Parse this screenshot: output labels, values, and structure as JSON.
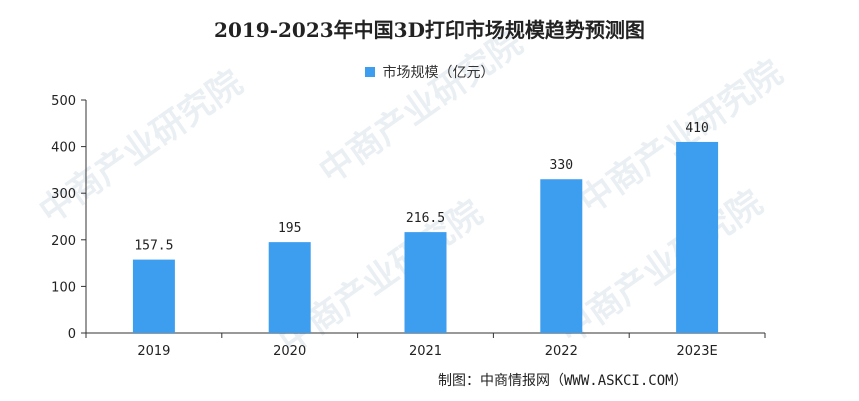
{
  "chart_data": {
    "type": "bar",
    "title": "2019-2023年中国3D打印市场规模趋势预测图",
    "categories": [
      "2019",
      "2020",
      "2021",
      "2022",
      "2023E"
    ],
    "series": [
      {
        "name": "市场规模（亿元）",
        "values": [
          157.5,
          195,
          216.5,
          330,
          410
        ],
        "color": "#3d9ef0"
      }
    ],
    "data_labels": [
      "157.5",
      "195",
      "216.5",
      "330",
      "410"
    ],
    "y_ticks": [
      "0",
      "100",
      "200",
      "300",
      "400",
      "500"
    ],
    "ylim": [
      0,
      500
    ],
    "grid": false,
    "legend_position": "top-center"
  },
  "source": "制图：中商情报网（WWW.ASKCI.COM）",
  "watermark_text": "中商产业研究院"
}
